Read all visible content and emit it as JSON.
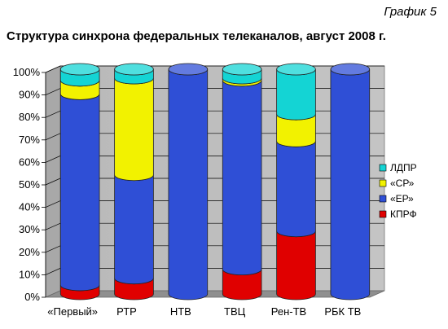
{
  "figure_label": "График 5",
  "chart_data": {
    "type": "bar",
    "stacked": true,
    "percent_stacked": true,
    "title": "Структура синхрона федеральных телеканалов, август 2008 г.",
    "categories": [
      "«Первый»",
      "РТР",
      "НТВ",
      "ТВЦ",
      "Рен-ТВ",
      "РБК ТВ"
    ],
    "yticks": [
      "0%",
      "10%",
      "20%",
      "30%",
      "40%",
      "50%",
      "60%",
      "70%",
      "80%",
      "90%",
      "100%"
    ],
    "ylim": [
      0,
      100
    ],
    "grid": true,
    "legend_position": "right",
    "series": [
      {
        "name": "КПРФ",
        "color": "#e00000",
        "values": [
          4,
          7,
          0,
          11,
          28,
          0
        ]
      },
      {
        "name": "«ЕР»",
        "color": "#2f4fd6",
        "values": [
          85,
          46,
          100,
          84,
          40,
          100
        ]
      },
      {
        "name": "«СР»",
        "color": "#f2f200",
        "values": [
          6,
          43,
          0,
          1,
          12,
          0
        ]
      },
      {
        "name": "ЛДПР",
        "color": "#14d4d4",
        "values": [
          5,
          4,
          0,
          4,
          20,
          0
        ]
      }
    ],
    "legend_order": [
      "ЛДПР",
      "«СР»",
      "«ЕР»",
      "КПРФ"
    ]
  }
}
